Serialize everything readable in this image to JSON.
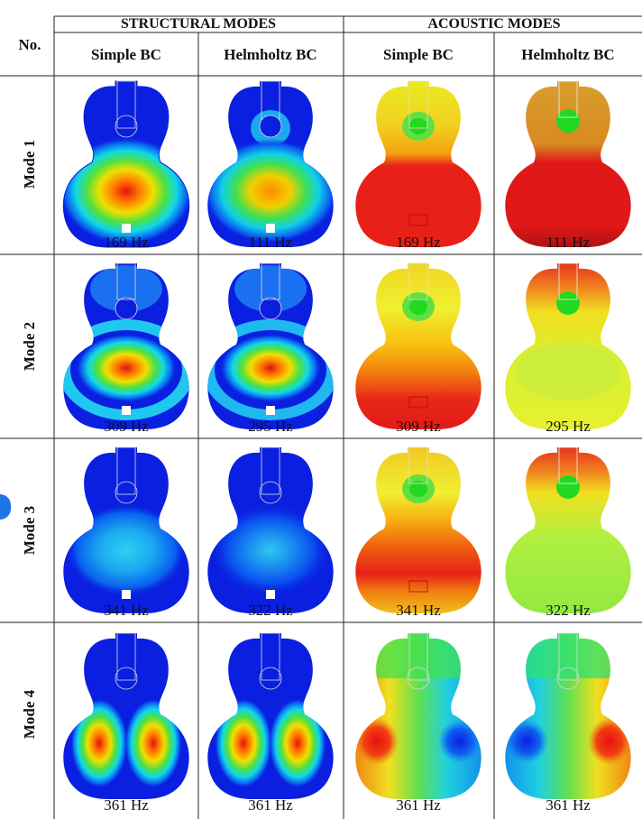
{
  "header": {
    "no_label": "No.",
    "groups": [
      "STRUCTURAL MODES",
      "ACOUSTIC MODES"
    ],
    "columns": [
      "Simple BC",
      "Helmholtz BC",
      "Simple BC",
      "Helmholtz BC"
    ]
  },
  "rows": [
    {
      "label": "Mode 1",
      "freqs": [
        "169 Hz",
        "111 Hz",
        "169 Hz",
        "111 Hz"
      ]
    },
    {
      "label": "Mode 2",
      "freqs": [
        "309 Hz",
        "295 Hz",
        "309 Hz",
        "295 Hz"
      ]
    },
    {
      "label": "Mode 3",
      "freqs": [
        "341 Hz",
        "322 Hz",
        "341 Hz",
        "322 Hz"
      ]
    },
    {
      "label": "Mode 4",
      "freqs": [
        "361 Hz",
        "361 Hz",
        "361 Hz",
        "361 Hz"
      ]
    }
  ],
  "colors": {
    "structural_background": "#0a1fe0",
    "acoustic_mode1": "#e52020",
    "acoustic_yellow": "#e8f020",
    "acoustic_green": "#22d820"
  }
}
